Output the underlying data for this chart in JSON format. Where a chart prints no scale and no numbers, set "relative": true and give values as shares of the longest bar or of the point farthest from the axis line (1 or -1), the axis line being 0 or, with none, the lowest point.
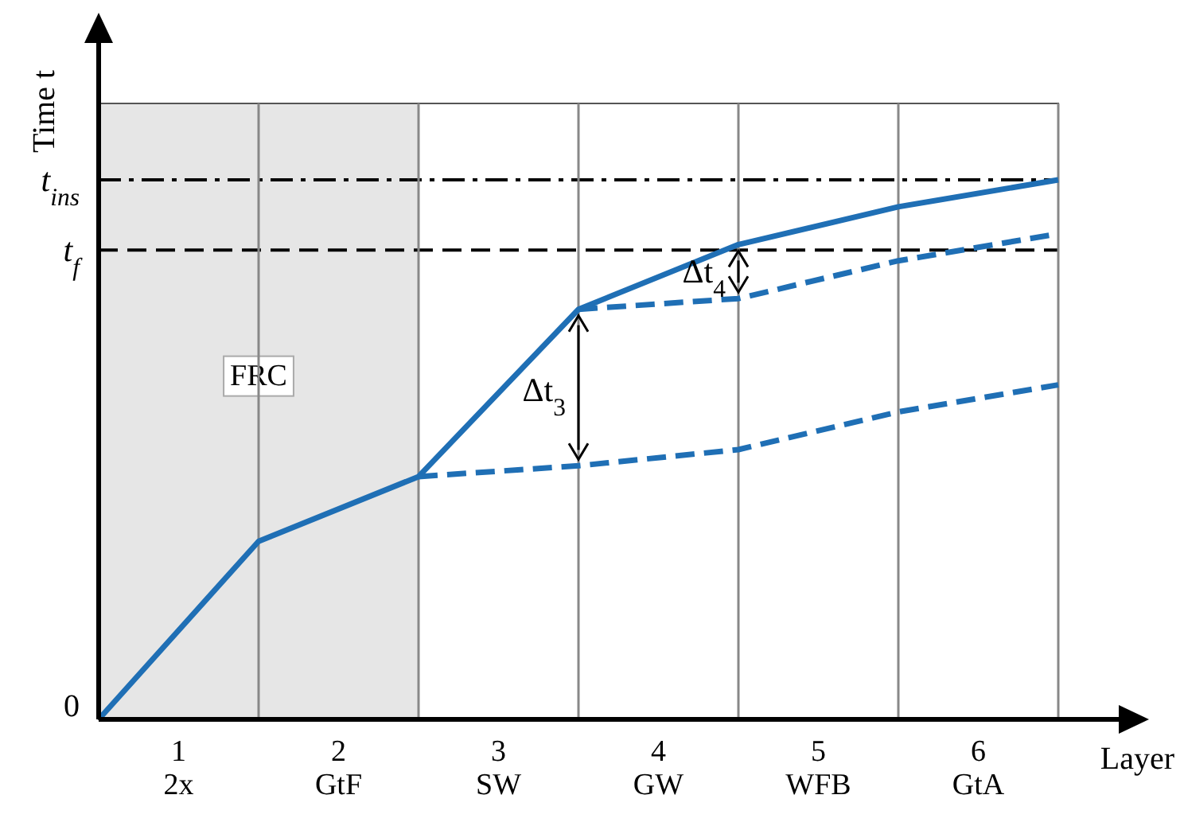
{
  "chart_data": {
    "type": "line",
    "relative": true,
    "xlabel": "Layer",
    "ylabel": "Time t",
    "xlim": [
      0.5,
      6.5
    ],
    "xticks": [
      1,
      2,
      3,
      4,
      5,
      6
    ],
    "series": [
      {
        "color": "#1f6fb5",
        "line_style": "solid",
        "x": [
          0.5,
          1.5,
          2.5,
          3.5,
          4.5,
          5.5,
          6.5
        ],
        "values": [
          0,
          0.33,
          0.45,
          0.76,
          0.88,
          0.95,
          1.0
        ]
      },
      {
        "color": "#1f6fb5",
        "line_style": "dashed",
        "x": [
          3.5,
          4.5,
          5.5,
          6.5
        ],
        "values": [
          0.76,
          0.78,
          0.85,
          0.9
        ]
      },
      {
        "color": "#1f6fb5",
        "line_style": "dashed",
        "x": [
          2.5,
          3.5,
          4.5,
          5.5,
          6.5
        ],
        "values": [
          0.45,
          0.47,
          0.5,
          0.57,
          0.62
        ]
      }
    ],
    "ref_lines": [
      {
        "axis": "y",
        "value": 1.0,
        "label": "t$_{ins}$",
        "color": "#000000",
        "line_style": "dashdot"
      },
      {
        "axis": "y",
        "value": 0.87,
        "label": "t$_{f}$",
        "color": "#000000",
        "line_style": "dashed"
      },
      {
        "axis": "x",
        "value": 1.5,
        "color": "#888888",
        "line_style": "solid"
      },
      {
        "axis": "x",
        "value": 2.5,
        "color": "#888888",
        "line_style": "solid"
      },
      {
        "axis": "x",
        "value": 3.5,
        "color": "#888888",
        "line_style": "solid"
      },
      {
        "axis": "x",
        "value": 4.5,
        "color": "#888888",
        "line_style": "solid"
      },
      {
        "axis": "x",
        "value": 5.5,
        "color": "#888888",
        "line_style": "solid"
      },
      {
        "axis": "x",
        "value": 6.5,
        "color": "#888888",
        "line_style": "solid"
      }
    ],
    "bands": [
      {
        "axis": "x",
        "from": 0.5,
        "to": 2.5,
        "label": "FRC",
        "color": "#e6e6e6"
      }
    ],
    "annotations": [
      "0",
      {
        "text": "Δt$_{3}$",
        "x": 3.5,
        "y": 0.61
      },
      {
        "text": "Δt$_{4}$",
        "x": 4.5,
        "y": 0.83
      },
      "2x",
      "GtF",
      "SW",
      "GW",
      "WFB",
      "GtA"
    ]
  }
}
